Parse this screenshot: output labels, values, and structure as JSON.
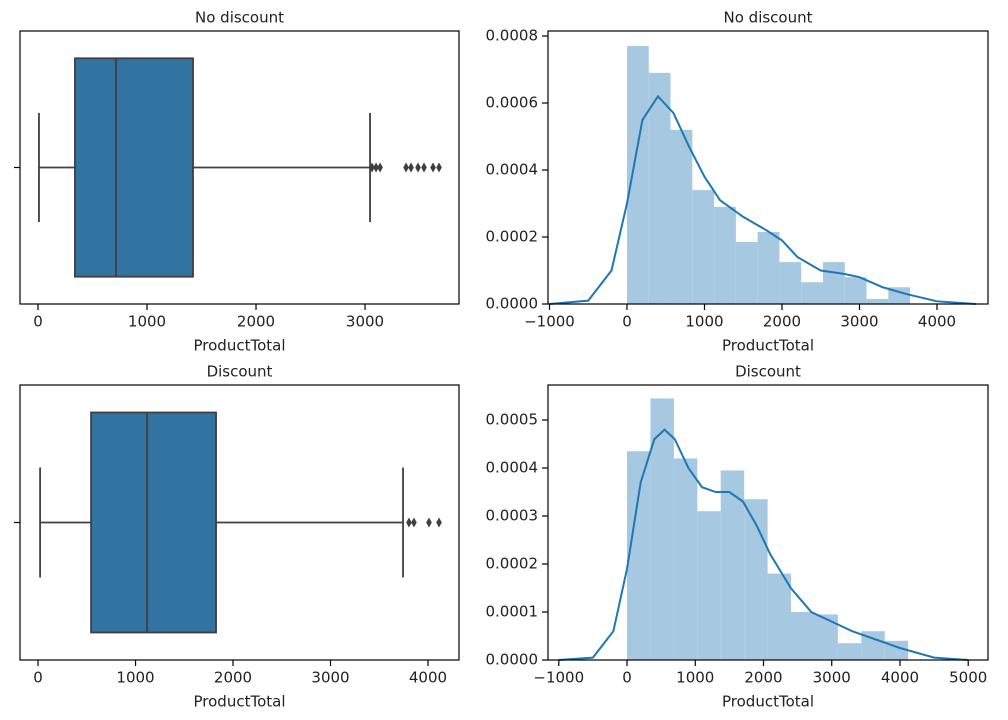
{
  "chart_data": [
    {
      "type": "box",
      "title": "No discount",
      "xlabel": "ProductTotal",
      "color": "#3274a1",
      "line_color": "#3f3f3f",
      "xlim": [
        -165,
        3862
      ],
      "xticks": [
        0,
        1000,
        2000,
        3000
      ],
      "box": {
        "whislo": 9,
        "q1": 339,
        "med": 716,
        "q3": 1422,
        "whishi": 3046,
        "fliers": [
          3064,
          3101,
          3138,
          3376,
          3422,
          3486,
          3541,
          3624,
          3679
        ]
      }
    },
    {
      "type": "histogram",
      "title": "No discount",
      "xlabel": "ProductTotal",
      "color": "#a6c8e0",
      "xlim": [
        -1019,
        4658
      ],
      "ylim": [
        0,
        0.000815
      ],
      "xticks": [
        {
          "value": -1000,
          "label": "−1000"
        },
        0,
        1000,
        2000,
        3000,
        4000
      ],
      "yticks": [
        {
          "value": 0,
          "label": "0.0000"
        },
        {
          "value": 0.0002,
          "label": "0.0002"
        },
        {
          "value": 0.0004,
          "label": "0.0004"
        },
        {
          "value": 0.0006,
          "label": "0.0006"
        },
        {
          "value": 0.0008,
          "label": "0.0008"
        }
      ],
      "bins": [
        0,
        281,
        562,
        843,
        1124,
        1405,
        1686,
        1967,
        2248,
        2529,
        2810,
        3091,
        3372,
        3653
      ],
      "values": [
        0.00077,
        0.00069,
        0.00052,
        0.00034,
        0.00029,
        0.000185,
        0.000215,
        0.000125,
        6.5e-05,
        0.000125,
        8e-05,
        1.5e-05,
        5e-05
      ],
      "kde": {
        "color": "#1f77b4",
        "x": [
          -1000,
          -500,
          -200,
          0,
          200,
          400,
          600,
          800,
          1000,
          1200,
          1500,
          1800,
          2000,
          2200,
          2500,
          2800,
          3000,
          3300,
          3600,
          4000,
          4500
        ],
        "values": [
          0,
          1e-05,
          0.0001,
          0.0003,
          0.00055,
          0.00062,
          0.00057,
          0.00047,
          0.00038,
          0.00031,
          0.00026,
          0.00022,
          0.00019,
          0.00014,
          0.0001,
          9e-05,
          8e-05,
          5e-05,
          3e-05,
          8e-06,
          0
        ]
      }
    },
    {
      "type": "box",
      "title": "Discount",
      "xlabel": "ProductTotal",
      "color": "#3274a1",
      "line_color": "#3f3f3f",
      "xlim": [
        -185,
        4318
      ],
      "xticks": [
        0,
        1000,
        2000,
        3000,
        4000
      ],
      "box": {
        "whislo": 21,
        "q1": 544,
        "med": 1118,
        "q3": 1826,
        "whishi": 3744,
        "fliers": [
          3805,
          3856,
          4010,
          4113
        ]
      }
    },
    {
      "type": "histogram",
      "title": "Discount",
      "xlabel": "ProductTotal",
      "color": "#a6c8e0",
      "xlim": [
        -1158,
        5290
      ],
      "ylim": [
        0,
        0.000573
      ],
      "xticks": [
        {
          "value": -1000,
          "label": "−1000"
        },
        0,
        1000,
        2000,
        3000,
        4000,
        5000
      ],
      "yticks": [
        {
          "value": 0,
          "label": "0.0000"
        },
        {
          "value": 0.0001,
          "label": "0.0001"
        },
        {
          "value": 0.0002,
          "label": "0.0002"
        },
        {
          "value": 0.0003,
          "label": "0.0003"
        },
        {
          "value": 0.0004,
          "label": "0.0004"
        },
        {
          "value": 0.0005,
          "label": "0.0005"
        }
      ],
      "bins": [
        0,
        343,
        687,
        1030,
        1373,
        1717,
        2060,
        2403,
        2747,
        3090,
        3433,
        3777,
        4120
      ],
      "values": [
        0.000435,
        0.000545,
        0.00042,
        0.00031,
        0.000395,
        0.000335,
        0.00018,
        0.0001,
        9.5e-05,
        3.5e-05,
        6e-05,
        4e-05
      ],
      "kde": {
        "color": "#1f77b4",
        "x": [
          -1000,
          -500,
          -200,
          0,
          200,
          400,
          550,
          700,
          900,
          1100,
          1300,
          1500,
          1700,
          1900,
          2100,
          2400,
          2700,
          3000,
          3300,
          3600,
          4000,
          4500,
          5000
        ],
        "values": [
          0,
          5e-06,
          6e-05,
          0.00019,
          0.00037,
          0.00046,
          0.00048,
          0.00046,
          0.0004,
          0.00036,
          0.00035,
          0.00035,
          0.00033,
          0.00028,
          0.00022,
          0.00015,
          0.0001,
          8e-05,
          6e-05,
          4.5e-05,
          2.5e-05,
          5e-06,
          0
        ]
      }
    }
  ]
}
